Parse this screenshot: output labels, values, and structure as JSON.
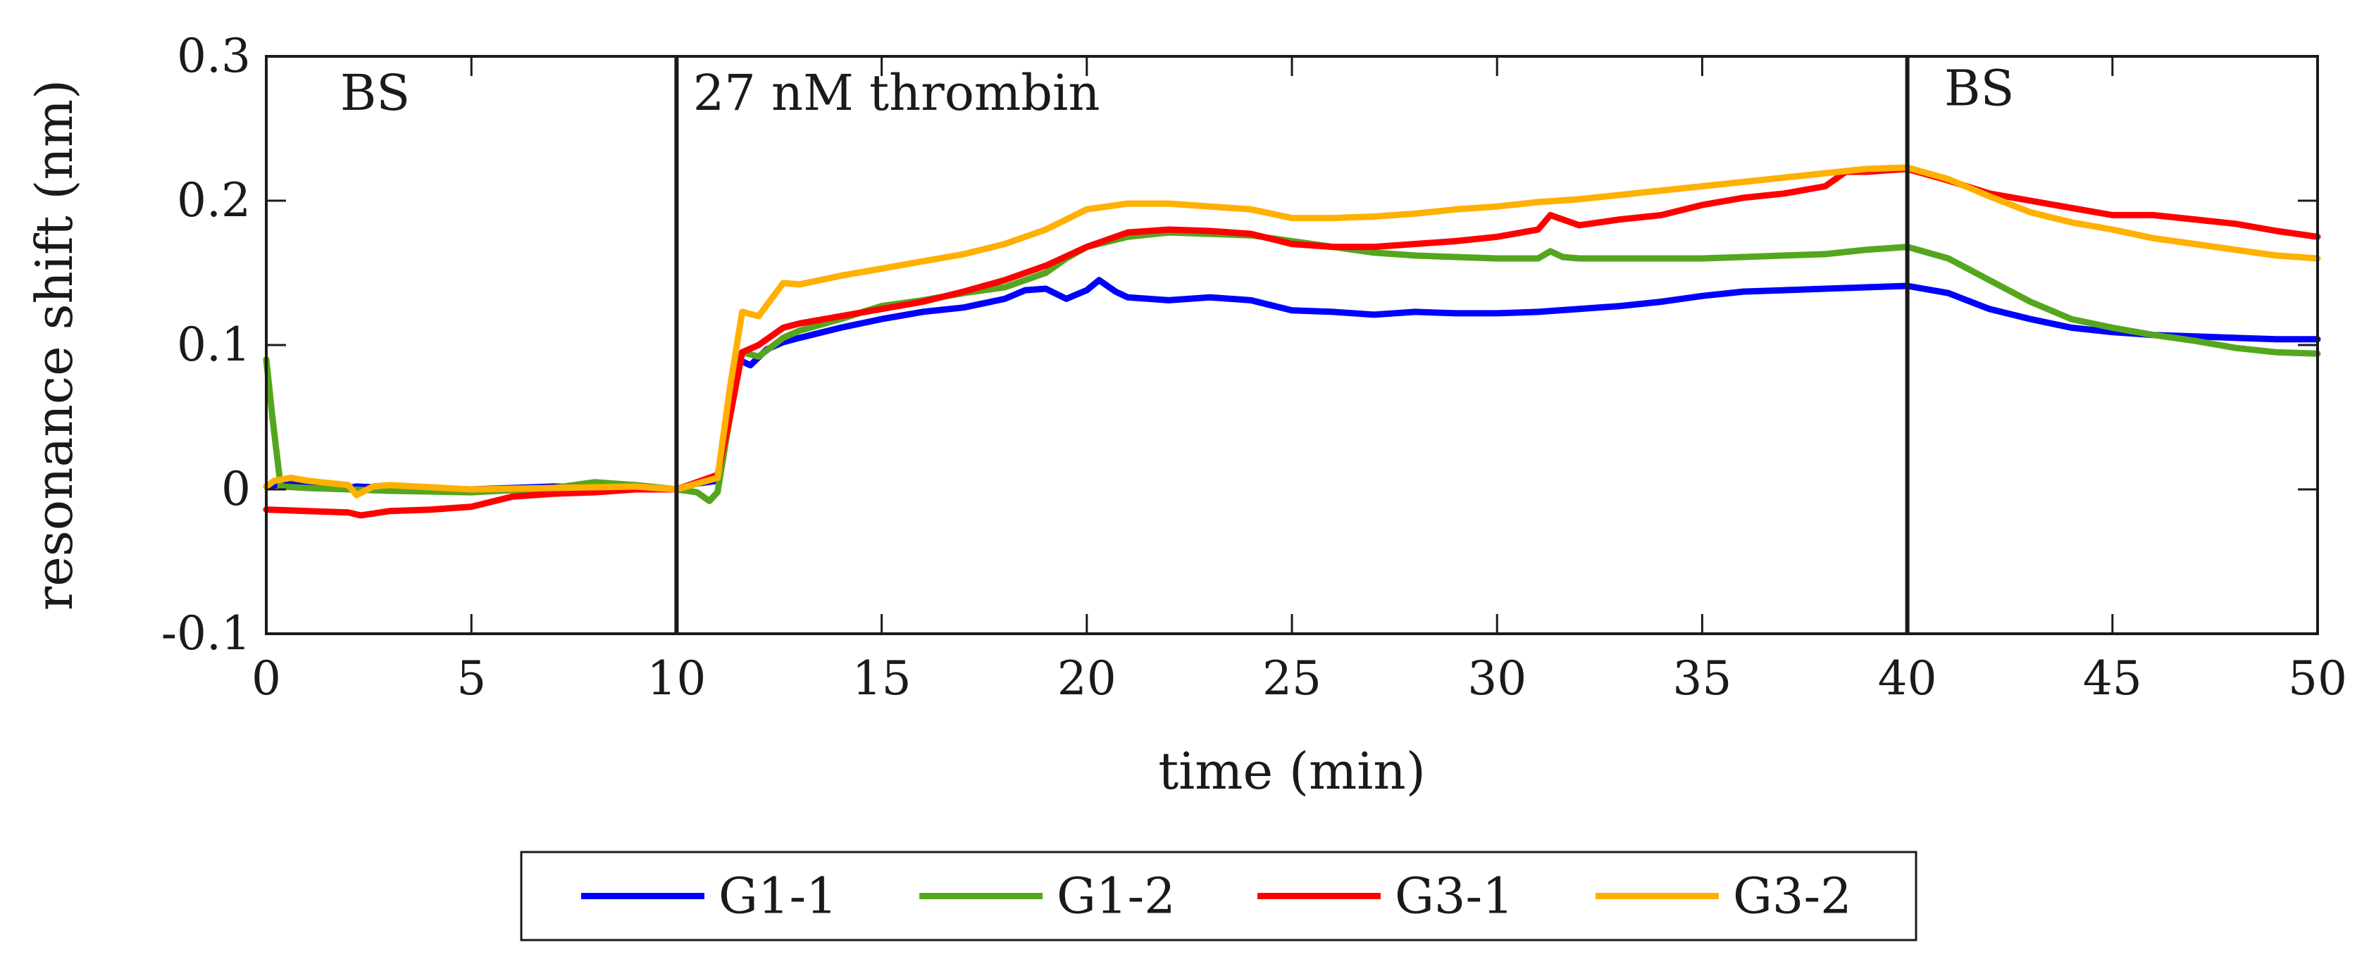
{
  "chart_data": {
    "type": "line",
    "title": "",
    "xlabel": "time (min)",
    "ylabel": "resonance shift (nm)",
    "xlim": [
      0,
      50
    ],
    "ylim": [
      -0.1,
      0.3
    ],
    "xticks": [
      0,
      5,
      10,
      15,
      20,
      25,
      30,
      35,
      40,
      45,
      50
    ],
    "xtick_labels": [
      "0",
      "5",
      "10",
      "15",
      "20",
      "25",
      "30",
      "35",
      "40",
      "45",
      "50"
    ],
    "yticks": [
      -0.1,
      0,
      0.1,
      0.2,
      0.3
    ],
    "ytick_labels": [
      "-0.1",
      "0",
      "0.1",
      "0.2",
      "0.3"
    ],
    "grid": false,
    "legend_position": "bottom-center",
    "vlines": [
      10,
      40
    ],
    "annotations": [
      {
        "text": "BS",
        "x": 1.8,
        "y": 0.263
      },
      {
        "text": "27 nM thrombin",
        "x": 10.4,
        "y": 0.263
      },
      {
        "text": "BS",
        "x": 40.9,
        "y": 0.266
      }
    ],
    "series": [
      {
        "name": "G1-1",
        "color": "#0000ff",
        "x": [
          0,
          0.4,
          2,
          2.2,
          3,
          5,
          7,
          9,
          10,
          10.5,
          11,
          11.5,
          11.8,
          12.2,
          12.6,
          13,
          14,
          15,
          16,
          17,
          18,
          18.5,
          19,
          19.5,
          20,
          20.3,
          20.7,
          21,
          22,
          23,
          24,
          25,
          26,
          27,
          28,
          29,
          30,
          31,
          32,
          33,
          34,
          35,
          36,
          37,
          38,
          39,
          40,
          41,
          42,
          43,
          44,
          45,
          46,
          47,
          48,
          49,
          50
        ],
        "y": [
          0.002,
          0.004,
          0.001,
          0.002,
          0.001,
          0,
          0.002,
          0.001,
          0,
          0.004,
          0.006,
          0.09,
          0.086,
          0.097,
          0.102,
          0.105,
          0.112,
          0.118,
          0.123,
          0.126,
          0.132,
          0.138,
          0.139,
          0.132,
          0.138,
          0.145,
          0.137,
          0.133,
          0.131,
          0.133,
          0.131,
          0.124,
          0.123,
          0.121,
          0.123,
          0.122,
          0.122,
          0.123,
          0.125,
          0.127,
          0.13,
          0.134,
          0.137,
          0.138,
          0.139,
          0.14,
          0.141,
          0.136,
          0.125,
          0.118,
          0.112,
          0.109,
          0.107,
          0.106,
          0.105,
          0.104,
          0.104
        ]
      },
      {
        "name": "G1-2",
        "color": "#55a61f",
        "x": [
          0,
          0.15,
          0.35,
          1,
          2,
          3,
          5,
          7,
          8,
          9,
          10,
          10.5,
          10.8,
          11,
          11.3,
          11.6,
          12,
          12.6,
          13,
          14,
          15,
          16,
          17,
          18,
          19,
          19.5,
          20,
          21,
          22,
          23,
          24,
          25,
          26,
          27,
          28,
          29,
          30,
          31,
          31.3,
          31.6,
          32,
          33,
          34,
          35,
          36,
          37,
          38,
          39,
          40,
          41,
          42,
          43,
          44,
          45,
          46,
          47,
          48,
          49,
          50
        ],
        "y": [
          0.09,
          0.05,
          0.002,
          0.001,
          0,
          -0.001,
          -0.002,
          0.001,
          0.005,
          0.003,
          0,
          -0.002,
          -0.008,
          -0.002,
          0.05,
          0.095,
          0.092,
          0.105,
          0.11,
          0.118,
          0.127,
          0.131,
          0.136,
          0.14,
          0.15,
          0.16,
          0.168,
          0.175,
          0.178,
          0.177,
          0.176,
          0.172,
          0.168,
          0.164,
          0.162,
          0.161,
          0.16,
          0.16,
          0.165,
          0.161,
          0.16,
          0.16,
          0.16,
          0.16,
          0.161,
          0.162,
          0.163,
          0.166,
          0.168,
          0.16,
          0.145,
          0.13,
          0.118,
          0.112,
          0.107,
          0.103,
          0.098,
          0.095,
          0.094
        ]
      },
      {
        "name": "G3-1",
        "color": "#ff0000",
        "x": [
          0,
          1,
          2,
          2.3,
          3,
          4,
          5,
          6,
          7,
          8,
          9,
          10,
          10.5,
          11,
          11.3,
          11.6,
          12,
          12.6,
          13,
          14,
          15,
          16,
          17,
          18,
          19,
          20,
          21,
          22,
          23,
          24,
          25,
          26,
          27,
          28,
          29,
          30,
          31,
          31.3,
          32,
          33,
          34,
          35,
          36,
          37,
          38,
          38.5,
          39,
          40,
          41,
          42,
          43,
          44,
          45,
          46,
          47,
          48,
          49,
          50
        ],
        "y": [
          -0.014,
          -0.015,
          -0.016,
          -0.018,
          -0.015,
          -0.014,
          -0.012,
          -0.005,
          -0.003,
          -0.002,
          0,
          0,
          0.005,
          0.01,
          0.05,
          0.095,
          0.1,
          0.112,
          0.115,
          0.12,
          0.125,
          0.13,
          0.137,
          0.145,
          0.155,
          0.168,
          0.178,
          0.18,
          0.179,
          0.177,
          0.17,
          0.168,
          0.168,
          0.17,
          0.172,
          0.175,
          0.18,
          0.19,
          0.183,
          0.187,
          0.19,
          0.197,
          0.202,
          0.205,
          0.21,
          0.22,
          0.22,
          0.222,
          0.214,
          0.205,
          0.2,
          0.195,
          0.19,
          0.19,
          0.187,
          0.184,
          0.179,
          0.175
        ]
      },
      {
        "name": "G3-2",
        "color": "#ffb000",
        "x": [
          0,
          0.2,
          0.6,
          1,
          2,
          2.2,
          2.6,
          3,
          5,
          7,
          9,
          10,
          10.5,
          11,
          11.3,
          11.6,
          12,
          12.6,
          13,
          14,
          15,
          16,
          17,
          18,
          19,
          20,
          21,
          22,
          23,
          24,
          25,
          26,
          27,
          28,
          29,
          30,
          31,
          32,
          33,
          34,
          35,
          36,
          37,
          38,
          39,
          40,
          41,
          42,
          43,
          44,
          45,
          46,
          47,
          48,
          49,
          50
        ],
        "y": [
          0.002,
          0.006,
          0.008,
          0.006,
          0.003,
          -0.004,
          0.002,
          0.003,
          0,
          0.001,
          0.002,
          0,
          0.004,
          0.008,
          0.07,
          0.123,
          0.12,
          0.143,
          0.142,
          0.148,
          0.153,
          0.158,
          0.163,
          0.17,
          0.18,
          0.194,
          0.198,
          0.198,
          0.196,
          0.194,
          0.188,
          0.188,
          0.189,
          0.191,
          0.194,
          0.196,
          0.199,
          0.201,
          0.204,
          0.207,
          0.21,
          0.213,
          0.216,
          0.219,
          0.222,
          0.223,
          0.215,
          0.203,
          0.192,
          0.185,
          0.18,
          0.174,
          0.17,
          0.166,
          0.162,
          0.16
        ]
      }
    ]
  }
}
